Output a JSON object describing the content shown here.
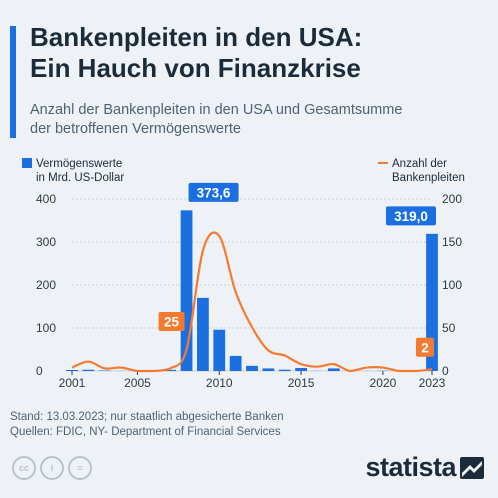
{
  "header": {
    "title_line1": "Bankenpleiten in den USA:",
    "title_line2": "Ein Hauch von Finanzkrise",
    "subtitle_line1": "Anzahl der Bankenpleiten in den USA und Gesamtsumme",
    "subtitle_line2": "der betroffenen Vermögenswerte"
  },
  "legend": {
    "left_line1": "Vermögenswerte",
    "left_line2": "in Mrd. US-Dollar",
    "right_line1": "Anzahl der",
    "right_line2": "Bankenpleiten"
  },
  "colors": {
    "bar": "#1c6fe0",
    "line": "#f47a2f",
    "text": "#1c2b3a",
    "grid": "#c9d1da"
  },
  "chart_data": {
    "type": "bar+line",
    "x": [
      2001,
      2002,
      2003,
      2004,
      2005,
      2006,
      2007,
      2008,
      2009,
      2010,
      2011,
      2012,
      2013,
      2014,
      2015,
      2016,
      2017,
      2018,
      2019,
      2020,
      2021,
      2022,
      2023
    ],
    "x_tick_labels": [
      "2001",
      "2005",
      "2010",
      "2015",
      "2020",
      "2023"
    ],
    "series": [
      {
        "name": "Vermögenswerte in Mrd. US-Dollar",
        "kind": "bar",
        "axis": "left",
        "values": [
          2.4,
          2.9,
          1.1,
          0.2,
          0,
          0,
          2.6,
          373.6,
          170,
          96,
          35,
          12,
          6,
          3,
          7,
          0.3,
          6,
          0,
          0.2,
          0.5,
          0,
          0,
          319.0
        ]
      },
      {
        "name": "Anzahl der Bankenpleiten",
        "kind": "line",
        "axis": "right",
        "values": [
          4,
          11,
          3,
          4,
          0,
          0,
          3,
          25,
          140,
          157,
          92,
          51,
          24,
          18,
          8,
          5,
          8,
          0,
          4,
          4,
          0,
          0,
          2
        ]
      }
    ],
    "y_left": {
      "ticks": [
        0,
        100,
        200,
        300,
        400
      ],
      "ylim": [
        0,
        400
      ]
    },
    "y_right": {
      "ticks": [
        0,
        50,
        100,
        150,
        200
      ],
      "ylim": [
        0,
        200
      ]
    },
    "annotations": [
      {
        "text": "373,6",
        "x": 2008,
        "series": "bar"
      },
      {
        "text": "319,0",
        "x": 2023,
        "series": "bar"
      },
      {
        "text": "25",
        "x": 2008,
        "series": "line"
      },
      {
        "text": "2",
        "x": 2023,
        "series": "line"
      }
    ]
  },
  "footer": {
    "note_line1": "Stand: 13.03.2023; nur staatlich abgesicherte Banken",
    "note_line2": "Quellen: FDIC, NY- Department of Financial Services",
    "license_icons": [
      "cc-icon",
      "person-icon",
      "equals-icon"
    ],
    "brand": "statista"
  }
}
